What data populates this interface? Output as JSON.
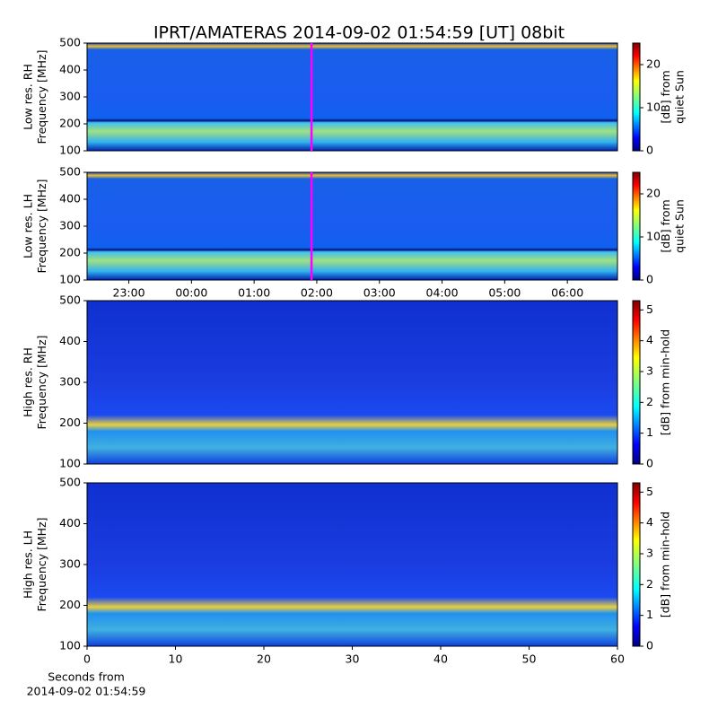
{
  "title": "IPRT/AMATERAS 2014-09-02 01:54:59 [UT]   08bit",
  "chart_data": [
    {
      "type": "heatmap",
      "ylabel": [
        "Low res. RH",
        "Frequency [MHz]"
      ],
      "ylim": [
        100,
        500
      ],
      "yticks": [
        100,
        200,
        300,
        400,
        500
      ],
      "cursor": "01:54:59",
      "cursor_color": "#ff00ff",
      "xlim": [
        "22:20",
        "06:48"
      ],
      "colorbar_label": [
        "[dB] from",
        "quiet Sun"
      ],
      "clim": [
        0,
        25
      ],
      "cticks": [
        0,
        10,
        20
      ],
      "colormap": "jet"
    },
    {
      "type": "heatmap",
      "ylabel": [
        "Low res. LH",
        "Frequency [MHz]"
      ],
      "ylim": [
        100,
        500
      ],
      "yticks": [
        100,
        200,
        300,
        400,
        500
      ],
      "cursor": "01:54:59",
      "cursor_color": "#ff00ff",
      "xlim": [
        "22:20",
        "06:48"
      ],
      "xticks": [
        "23:00",
        "00:00",
        "01:00",
        "02:00",
        "03:00",
        "04:00",
        "05:00",
        "06:00"
      ],
      "colorbar_label": [
        "[dB] from",
        "quiet Sun"
      ],
      "clim": [
        0,
        25
      ],
      "cticks": [
        0,
        10,
        20
      ],
      "colormap": "jet"
    },
    {
      "type": "heatmap",
      "ylabel": [
        "High res. RH",
        "Frequency [MHz]"
      ],
      "ylim": [
        100,
        500
      ],
      "yticks": [
        100,
        200,
        300,
        400,
        500
      ],
      "xlim": [
        0,
        60
      ],
      "colorbar_label": [
        "[dB] from min-hold"
      ],
      "clim": [
        0,
        5.3
      ],
      "cticks": [
        0,
        1,
        2,
        3,
        4,
        5
      ],
      "colormap": "jet"
    },
    {
      "type": "heatmap",
      "ylabel": [
        "High res. LH",
        "Frequency [MHz]"
      ],
      "ylim": [
        100,
        500
      ],
      "yticks": [
        100,
        200,
        300,
        400,
        500
      ],
      "xlim": [
        0,
        60
      ],
      "xticks": [
        0,
        10,
        20,
        30,
        40,
        50,
        60
      ],
      "xlabel": [
        "Seconds from",
        "2014-09-02 01:54:59"
      ],
      "colorbar_label": [
        "[dB] from min-hold"
      ],
      "clim": [
        0,
        5.3
      ],
      "cticks": [
        0,
        1,
        2,
        3,
        4,
        5
      ],
      "colormap": "jet"
    }
  ]
}
